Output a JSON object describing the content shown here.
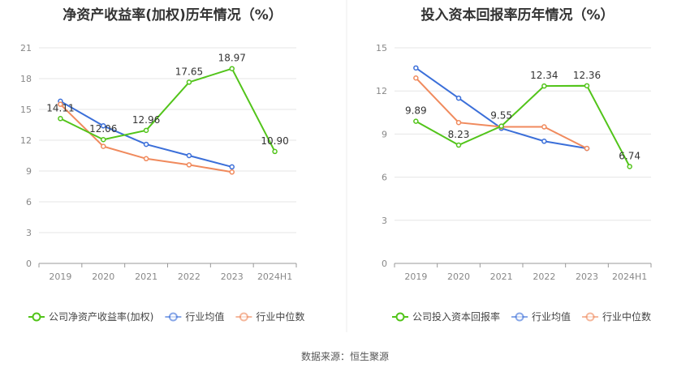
{
  "source_label": "数据来源：恒生聚源",
  "chart_data": [
    {
      "type": "line",
      "title": "净资产收益率(加权)历年情况（%）",
      "categories": [
        "2019",
        "2020",
        "2021",
        "2022",
        "2023",
        "2024H1"
      ],
      "ylim": [
        0,
        21
      ],
      "yticks": [
        0,
        3,
        6,
        9,
        12,
        15,
        18,
        21
      ],
      "series": [
        {
          "name": "公司净资产收益率(加权)",
          "color": "#52c41a",
          "values": [
            14.11,
            12.06,
            12.96,
            17.65,
            18.97,
            10.9
          ],
          "labels": [
            "14.11",
            "12.06",
            "12.96",
            "17.65",
            "18.97",
            "10.90"
          ]
        },
        {
          "name": "行业均值",
          "color": "#3b6fd9",
          "values": [
            15.8,
            13.4,
            11.6,
            10.5,
            9.4,
            null
          ]
        },
        {
          "name": "行业中位数",
          "color": "#f08a5d",
          "values": [
            15.5,
            11.4,
            10.2,
            9.6,
            8.9,
            null
          ]
        }
      ]
    },
    {
      "type": "line",
      "title": "投入资本回报率历年情况（%）",
      "categories": [
        "2019",
        "2020",
        "2021",
        "2022",
        "2023",
        "2024H1"
      ],
      "ylim": [
        0,
        15
      ],
      "yticks": [
        0,
        3,
        6,
        9,
        12,
        15
      ],
      "series": [
        {
          "name": "公司投入资本回报率",
          "color": "#52c41a",
          "values": [
            9.89,
            8.23,
            9.55,
            12.34,
            12.36,
            6.74
          ],
          "labels": [
            "9.89",
            "8.23",
            "9.55",
            "12.34",
            "12.36",
            "6.74"
          ]
        },
        {
          "name": "行业均值",
          "color": "#3b6fd9",
          "values": [
            13.6,
            11.5,
            9.4,
            8.5,
            8.0,
            null
          ]
        },
        {
          "name": "行业中位数",
          "color": "#f08a5d",
          "values": [
            12.9,
            9.8,
            9.5,
            9.5,
            8.0,
            null
          ]
        }
      ]
    }
  ]
}
